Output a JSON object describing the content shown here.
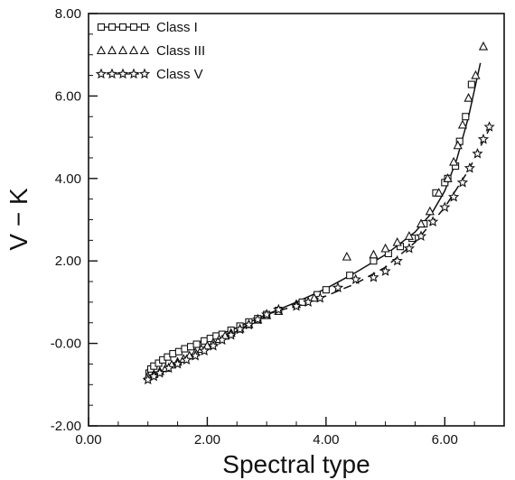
{
  "chart_data": {
    "type": "scatter",
    "xlabel": "Spectral type",
    "ylabel": "V − K",
    "xlim": [
      0,
      7.0
    ],
    "ylim": [
      -2,
      8
    ],
    "x_ticks": [
      0,
      2,
      4,
      6
    ],
    "x_tick_labels": [
      "0.00",
      "2.00",
      "4.00",
      "6.00"
    ],
    "y_ticks": [
      -2,
      0,
      2,
      4,
      6,
      8
    ],
    "y_tick_labels": [
      "-2.00",
      "-0.00",
      "2.00",
      "4.00",
      "6.00",
      "8.00"
    ],
    "legend_position": "top-left",
    "grid": false,
    "series": [
      {
        "name": "Class I",
        "marker": "square",
        "line": "solid",
        "points": [
          [
            1.02,
            -0.72
          ],
          [
            1.05,
            -0.62
          ],
          [
            1.1,
            -0.55
          ],
          [
            1.18,
            -0.48
          ],
          [
            1.25,
            -0.4
          ],
          [
            1.33,
            -0.33
          ],
          [
            1.42,
            -0.25
          ],
          [
            1.52,
            -0.2
          ],
          [
            1.62,
            -0.13
          ],
          [
            1.72,
            -0.08
          ],
          [
            1.82,
            -0.02
          ],
          [
            1.95,
            0.06
          ],
          [
            2.05,
            0.12
          ],
          [
            2.15,
            0.18
          ],
          [
            2.25,
            0.22
          ],
          [
            2.4,
            0.32
          ],
          [
            2.55,
            0.42
          ],
          [
            2.7,
            0.52
          ],
          [
            2.85,
            0.6
          ],
          [
            3.0,
            0.7
          ],
          [
            3.2,
            0.8
          ],
          [
            3.6,
            1.0
          ],
          [
            3.85,
            1.18
          ],
          [
            4.0,
            1.3
          ],
          [
            4.4,
            1.65
          ],
          [
            4.8,
            2.0
          ],
          [
            5.05,
            2.18
          ],
          [
            5.25,
            2.35
          ],
          [
            5.45,
            2.55
          ],
          [
            5.65,
            2.9
          ],
          [
            5.85,
            3.65
          ],
          [
            6.0,
            3.9
          ],
          [
            6.05,
            4.0
          ],
          [
            6.18,
            4.3
          ],
          [
            6.25,
            4.9
          ],
          [
            6.35,
            5.5
          ],
          [
            6.45,
            6.28
          ]
        ],
        "curve": [
          [
            1.0,
            -0.65
          ],
          [
            1.2,
            -0.42
          ],
          [
            1.5,
            -0.18
          ],
          [
            2.0,
            0.1
          ],
          [
            2.5,
            0.38
          ],
          [
            3.0,
            0.7
          ],
          [
            3.5,
            1.0
          ],
          [
            4.0,
            1.33
          ],
          [
            4.5,
            1.72
          ],
          [
            5.0,
            2.15
          ],
          [
            5.5,
            2.7
          ],
          [
            5.8,
            3.2
          ],
          [
            6.0,
            3.7
          ],
          [
            6.2,
            4.45
          ],
          [
            6.4,
            5.5
          ],
          [
            6.6,
            6.8
          ]
        ]
      },
      {
        "name": "Class III",
        "marker": "triangle",
        "line": "none",
        "points": [
          [
            1.0,
            -0.8
          ],
          [
            1.1,
            -0.75
          ],
          [
            1.2,
            -0.68
          ],
          [
            1.3,
            -0.6
          ],
          [
            1.4,
            -0.52
          ],
          [
            1.5,
            -0.45
          ],
          [
            1.6,
            -0.38
          ],
          [
            1.7,
            -0.3
          ],
          [
            1.8,
            -0.22
          ],
          [
            1.9,
            -0.14
          ],
          [
            2.0,
            -0.06
          ],
          [
            2.1,
            0.02
          ],
          [
            2.2,
            0.1
          ],
          [
            2.3,
            0.18
          ],
          [
            2.4,
            0.25
          ],
          [
            2.55,
            0.35
          ],
          [
            2.7,
            0.46
          ],
          [
            2.85,
            0.57
          ],
          [
            3.0,
            0.68
          ],
          [
            3.2,
            0.78
          ],
          [
            3.5,
            0.95
          ],
          [
            3.8,
            1.1
          ],
          [
            4.35,
            2.1
          ],
          [
            4.8,
            2.15
          ],
          [
            5.0,
            2.3
          ],
          [
            5.2,
            2.45
          ],
          [
            5.4,
            2.6
          ],
          [
            5.6,
            2.9
          ],
          [
            5.75,
            3.2
          ],
          [
            5.9,
            3.65
          ],
          [
            6.05,
            4.0
          ],
          [
            6.15,
            4.4
          ],
          [
            6.22,
            4.8
          ],
          [
            6.3,
            5.3
          ],
          [
            6.4,
            5.95
          ],
          [
            6.52,
            6.5
          ],
          [
            6.65,
            7.2
          ]
        ]
      },
      {
        "name": "Class V",
        "marker": "star",
        "line": "dashed",
        "points": [
          [
            1.0,
            -0.88
          ],
          [
            1.1,
            -0.8
          ],
          [
            1.2,
            -0.72
          ],
          [
            1.35,
            -0.6
          ],
          [
            1.5,
            -0.5
          ],
          [
            1.65,
            -0.4
          ],
          [
            1.8,
            -0.3
          ],
          [
            1.95,
            -0.18
          ],
          [
            2.1,
            -0.06
          ],
          [
            2.25,
            0.08
          ],
          [
            2.4,
            0.2
          ],
          [
            2.55,
            0.34
          ],
          [
            2.7,
            0.45
          ],
          [
            2.85,
            0.58
          ],
          [
            3.0,
            0.7
          ],
          [
            3.2,
            0.82
          ],
          [
            3.5,
            0.9
          ],
          [
            3.7,
            1.0
          ],
          [
            3.9,
            1.1
          ],
          [
            4.2,
            1.35
          ],
          [
            4.5,
            1.55
          ],
          [
            4.8,
            1.6
          ],
          [
            5.0,
            1.75
          ],
          [
            5.2,
            2.0
          ],
          [
            5.4,
            2.3
          ],
          [
            5.6,
            2.6
          ],
          [
            5.8,
            2.95
          ],
          [
            6.0,
            3.3
          ],
          [
            6.15,
            3.55
          ],
          [
            6.3,
            3.9
          ],
          [
            6.42,
            4.25
          ],
          [
            6.55,
            4.6
          ],
          [
            6.65,
            4.95
          ],
          [
            6.75,
            5.25
          ]
        ],
        "curve": [
          [
            1.0,
            -0.88
          ],
          [
            1.5,
            -0.5
          ],
          [
            2.0,
            -0.1
          ],
          [
            2.5,
            0.3
          ],
          [
            3.0,
            0.7
          ],
          [
            3.5,
            0.92
          ],
          [
            4.0,
            1.15
          ],
          [
            4.5,
            1.45
          ],
          [
            5.0,
            1.85
          ],
          [
            5.5,
            2.45
          ],
          [
            6.0,
            3.3
          ],
          [
            6.4,
            4.2
          ],
          [
            6.75,
            5.2
          ]
        ]
      }
    ]
  }
}
